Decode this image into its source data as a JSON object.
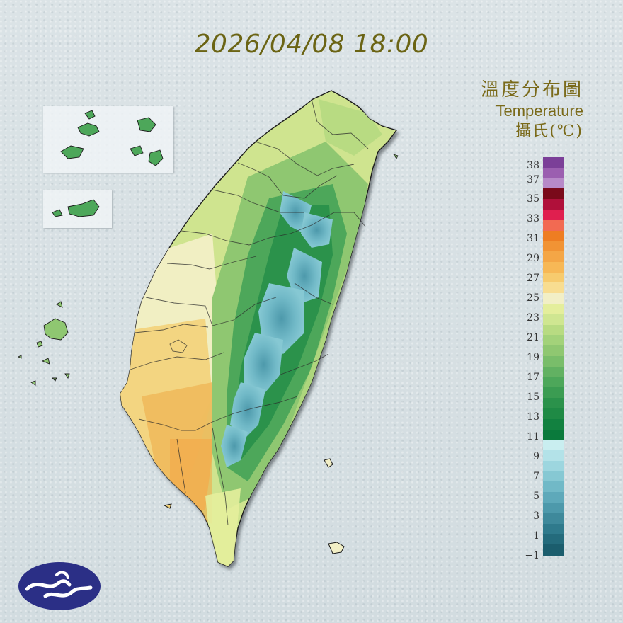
{
  "timestamp": "2026/04/08 18:00",
  "legend": {
    "title_zh": "溫度分布圖",
    "title_en": "Temperature",
    "unit": "攝氏(℃)",
    "ticks": [
      "38",
      "37",
      "35",
      "33",
      "31",
      "29",
      "27",
      "25",
      "23",
      "21",
      "19",
      "17",
      "15",
      "13",
      "11",
      "9",
      "7",
      "5",
      "3",
      "1",
      "−1"
    ],
    "segments": [
      {
        "range": "37-38",
        "color": "#7b3f98"
      },
      {
        "range": "36-37",
        "color": "#9b5fb0"
      },
      {
        "range": "35-36",
        "color": "#b78ac8"
      },
      {
        "range": "34-35",
        "color": "#7a0a1a"
      },
      {
        "range": "33-34",
        "color": "#b0103a"
      },
      {
        "range": "32-33",
        "color": "#e01f4f"
      },
      {
        "range": "31-32",
        "color": "#f26a52"
      },
      {
        "range": "30-31",
        "color": "#ee7d22"
      },
      {
        "range": "29-30",
        "color": "#f19334"
      },
      {
        "range": "28-29",
        "color": "#f4a646"
      },
      {
        "range": "27-28",
        "color": "#f7b856"
      },
      {
        "range": "26-27",
        "color": "#f7cb6e"
      },
      {
        "range": "25-26",
        "color": "#f8dd91"
      },
      {
        "range": "24-25",
        "color": "#f2efc6"
      },
      {
        "range": "23-24",
        "color": "#e4ee9c"
      },
      {
        "range": "22-23",
        "color": "#cfe691"
      },
      {
        "range": "21-22",
        "color": "#b8db82"
      },
      {
        "range": "20-21",
        "color": "#a3d27a"
      },
      {
        "range": "19-20",
        "color": "#8fc771"
      },
      {
        "range": "18-19",
        "color": "#79bd6a"
      },
      {
        "range": "17-18",
        "color": "#62b162"
      },
      {
        "range": "16-17",
        "color": "#4da75a"
      },
      {
        "range": "15-16",
        "color": "#3b9c52"
      },
      {
        "range": "14-15",
        "color": "#2b924b"
      },
      {
        "range": "13-14",
        "color": "#1f8a45"
      },
      {
        "range": "12-13",
        "color": "#128140"
      },
      {
        "range": "11-12",
        "color": "#0a7a3c"
      },
      {
        "range": "10-11",
        "color": "#c9eef0"
      },
      {
        "range": "9-10",
        "color": "#b3e2e8"
      },
      {
        "range": "8-9",
        "color": "#9dd6df"
      },
      {
        "range": "7-8",
        "color": "#86c8d3"
      },
      {
        "range": "6-7",
        "color": "#71b9c7"
      },
      {
        "range": "5-6",
        "color": "#5ea9ba"
      },
      {
        "range": "4-5",
        "color": "#4d99ab"
      },
      {
        "range": "3-4",
        "color": "#3e899b"
      },
      {
        "range": "2-3",
        "color": "#2f7a8c"
      },
      {
        "range": "1-2",
        "color": "#246b7c"
      },
      {
        "range": "-1-1",
        "color": "#1b5d6d"
      }
    ]
  },
  "map": {
    "coast_color": "#1a1a1a",
    "lowland_color": "#f3d27a",
    "southwest_color": "#eeb85a",
    "plain_color": "#cfe48f",
    "hill_color": "#8fc771",
    "mountain_color": "#3b9c52",
    "peak_color": "#5ea9ba"
  },
  "logo": {
    "icon": "cwa-cloud-logo-icon",
    "color": "#2b2f86"
  }
}
